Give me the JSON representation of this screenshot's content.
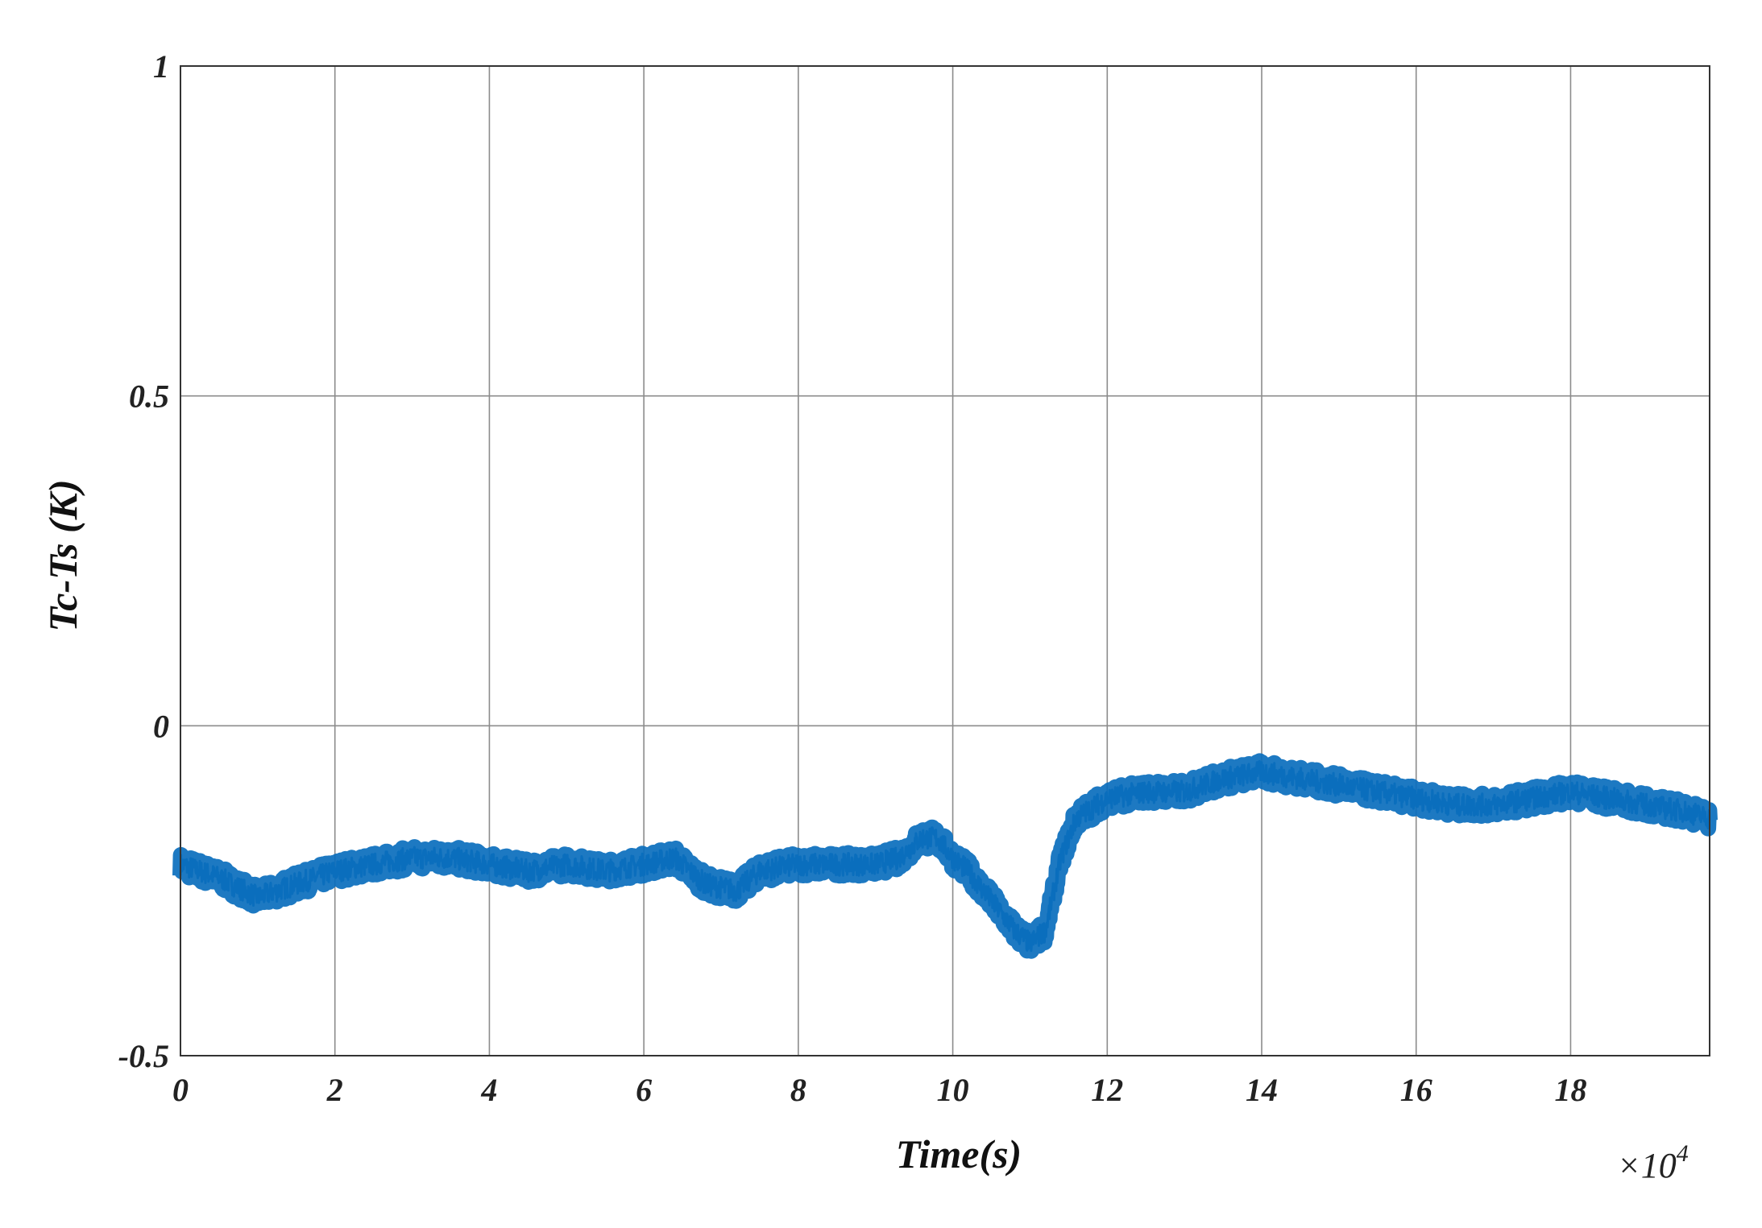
{
  "chart_data": {
    "type": "line",
    "title": "",
    "xlabel": "Time(s)",
    "ylabel": "Tc-Ts (K)",
    "x_multiplier": "×10",
    "x_multiplier_exponent": "4",
    "xlim": [
      0,
      19.8
    ],
    "ylim": [
      -0.5,
      1
    ],
    "x_ticks": [
      "0",
      "2",
      "4",
      "6",
      "8",
      "10",
      "12",
      "14",
      "16",
      "18"
    ],
    "x_tick_values": [
      0,
      2,
      4,
      6,
      8,
      10,
      12,
      14,
      16,
      18
    ],
    "y_ticks": [
      "-0.5",
      "0",
      "0.5",
      "1"
    ],
    "y_tick_values": [
      -0.5,
      0,
      0.5,
      1
    ],
    "grid": true,
    "line_color": "#0a6ebd",
    "series": [
      {
        "x": [
          0,
          0.5,
          1.0,
          1.5,
          2.0,
          2.5,
          3.0,
          3.5,
          4.0,
          4.5,
          5.0,
          5.5,
          6.0,
          6.4,
          6.8,
          7.2,
          7.5,
          8.0,
          8.5,
          9.0,
          9.3,
          9.6,
          9.8,
          10.0,
          10.2,
          10.4,
          10.6,
          10.8,
          11.0,
          11.2,
          11.4,
          11.6,
          12.0,
          12.5,
          13.0,
          13.5,
          14.0,
          14.5,
          15.0,
          15.5,
          16.0,
          16.5,
          17.0,
          17.5,
          18.0,
          18.5,
          19.0,
          19.5,
          19.8
        ],
        "y": [
          -0.21,
          -0.23,
          -0.26,
          -0.24,
          -0.22,
          -0.21,
          -0.2,
          -0.2,
          -0.21,
          -0.22,
          -0.21,
          -0.22,
          -0.21,
          -0.2,
          -0.24,
          -0.25,
          -0.22,
          -0.21,
          -0.21,
          -0.21,
          -0.2,
          -0.17,
          -0.17,
          -0.2,
          -0.22,
          -0.25,
          -0.28,
          -0.31,
          -0.33,
          -0.31,
          -0.2,
          -0.14,
          -0.11,
          -0.1,
          -0.1,
          -0.08,
          -0.07,
          -0.08,
          -0.09,
          -0.1,
          -0.11,
          -0.12,
          -0.12,
          -0.11,
          -0.1,
          -0.11,
          -0.12,
          -0.13,
          -0.14
        ]
      }
    ]
  }
}
